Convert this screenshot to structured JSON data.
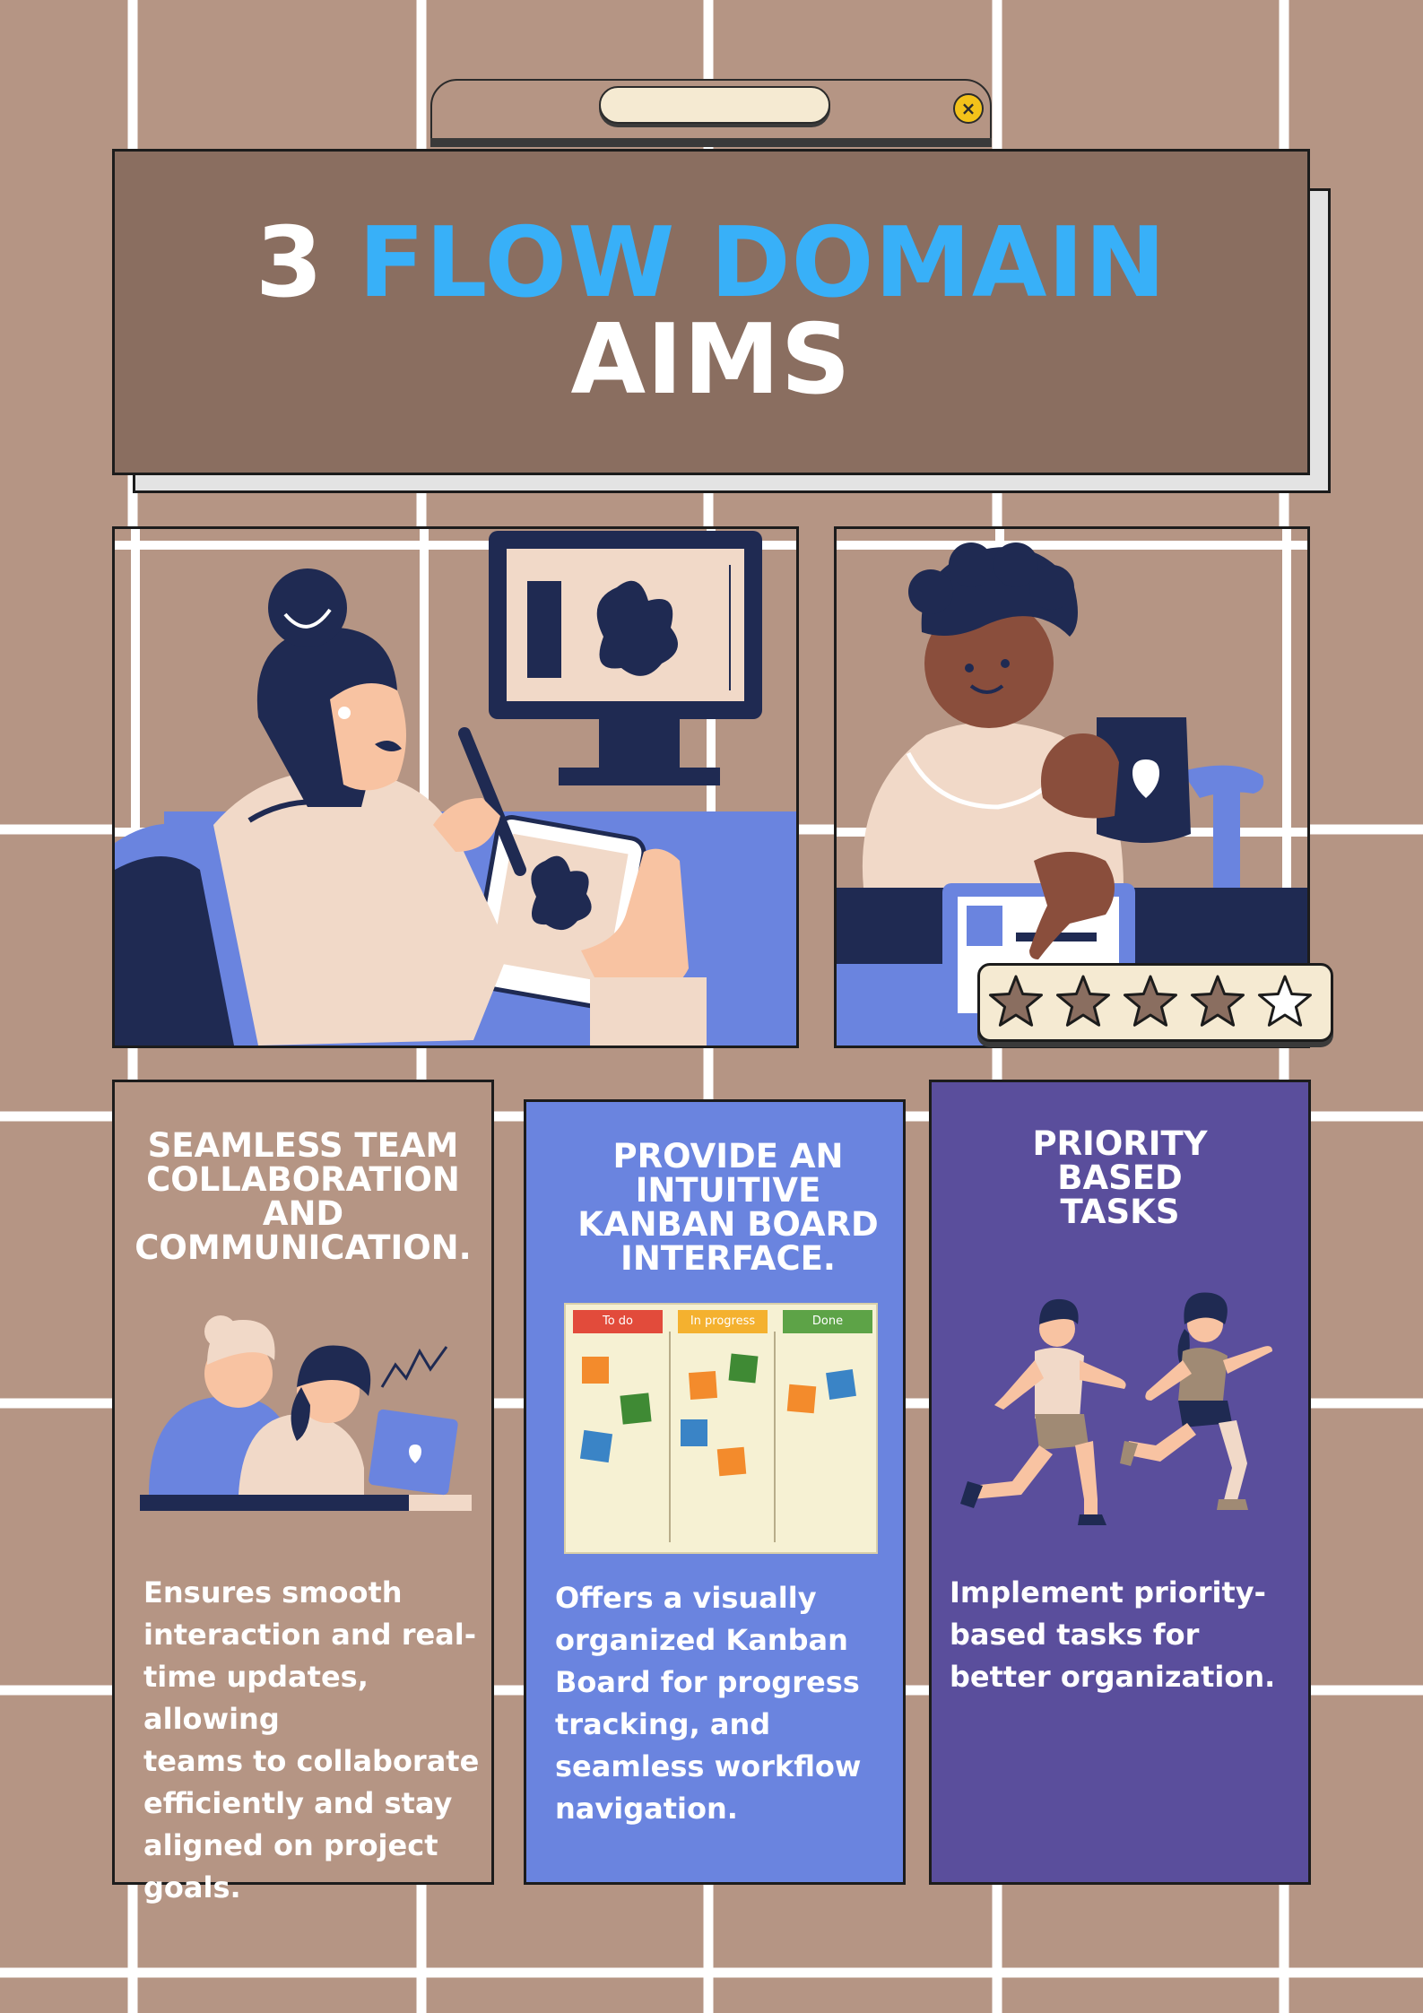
{
  "header": {
    "title_number": "3",
    "title_highlight": "FLOW DOMAIN",
    "title_line2": "AIMS"
  },
  "colors": {
    "background": "#b59584",
    "title_box": "#8a6e60",
    "title_accent": "#38b0f8",
    "card_brown": "#b59584",
    "card_blue": "#6a84df",
    "card_purple": "#5a4e9c"
  },
  "icons": [
    "close-icon",
    "star-icon",
    "heart-icon"
  ],
  "rating": {
    "filled": 4,
    "total": 5
  },
  "cards": [
    {
      "title_lines": [
        "SEAMLESS TEAM",
        "COLLABORATION",
        "AND",
        "COMMUNICATION."
      ],
      "body_lines": [
        "Ensures smooth",
        "interaction and real-",
        "time updates, allowing",
        "teams to collaborate",
        "efficiently and stay",
        "aligned on project",
        "goals."
      ]
    },
    {
      "title_lines": [
        "PROVIDE AN",
        "INTUITIVE",
        "KANBAN BOARD",
        "INTERFACE."
      ],
      "kanban_columns": [
        "To do",
        "In progress",
        "Done"
      ],
      "body_lines": [
        "Offers a visually",
        "organized Kanban",
        "Board for progress",
        "tracking, and",
        "seamless workflow",
        "navigation."
      ]
    },
    {
      "title_lines": [
        "PRIORITY",
        "BASED",
        "TASKS"
      ],
      "body_lines": [
        "Implement priority-",
        "based tasks for",
        "better organization."
      ]
    }
  ]
}
